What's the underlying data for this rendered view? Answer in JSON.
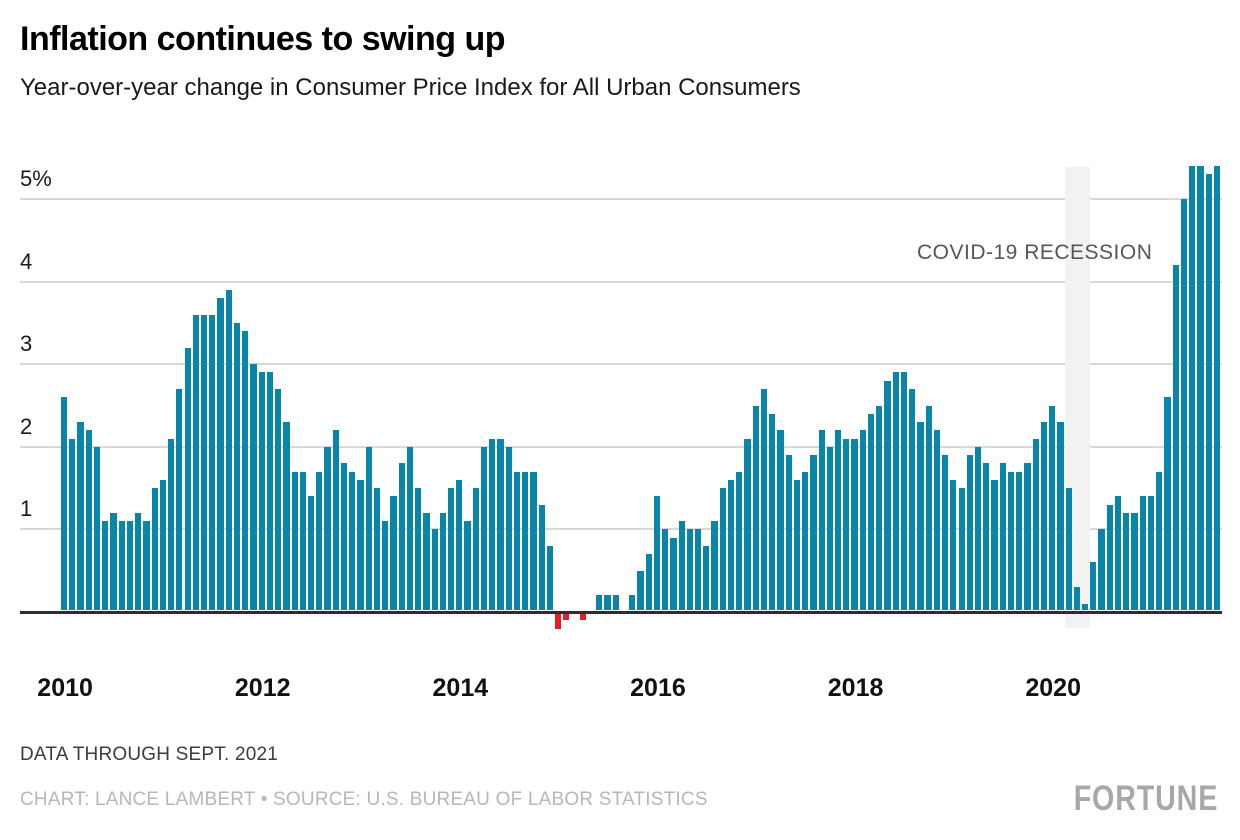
{
  "header": {
    "title": "Inflation continues to swing up",
    "subtitle": "Year-over-year change in Consumer Price Index for All Urban Consumers"
  },
  "chart_data": {
    "type": "bar",
    "title": "Inflation continues to swing up",
    "subtitle": "Year-over-year change in Consumer Price Index for All Urban Consumers",
    "x_start_month": "2010-01",
    "x_end_month": "2021-09",
    "x_tick_labels": [
      "2010",
      "2012",
      "2014",
      "2016",
      "2018",
      "2020"
    ],
    "x_tick_month_indices": [
      0,
      24,
      48,
      72,
      96,
      120
    ],
    "y_ticks": [
      5,
      4,
      3,
      2,
      1
    ],
    "y_tick_labels": [
      "5%",
      "4",
      "3",
      "2",
      "1"
    ],
    "ylim": [
      -0.5,
      5.5
    ],
    "value_unit": "percent",
    "grid": "horizontal",
    "series": [
      {
        "name": "YoY change in CPI-U (%)",
        "values": [
          2.6,
          2.1,
          2.3,
          2.2,
          2.0,
          1.1,
          1.2,
          1.1,
          1.1,
          1.2,
          1.1,
          1.5,
          1.6,
          2.1,
          2.7,
          3.2,
          3.6,
          3.6,
          3.6,
          3.8,
          3.9,
          3.5,
          3.4,
          3.0,
          2.9,
          2.9,
          2.7,
          2.3,
          1.7,
          1.7,
          1.4,
          1.7,
          2.0,
          2.2,
          1.8,
          1.7,
          1.6,
          2.0,
          1.5,
          1.1,
          1.4,
          1.8,
          2.0,
          1.5,
          1.2,
          1.0,
          1.2,
          1.5,
          1.6,
          1.1,
          1.5,
          2.0,
          2.1,
          2.1,
          2.0,
          1.7,
          1.7,
          1.7,
          1.3,
          0.8,
          -0.2,
          -0.1,
          0.0,
          -0.1,
          0.0,
          0.2,
          0.2,
          0.2,
          0.0,
          0.2,
          0.5,
          0.7,
          1.4,
          1.0,
          0.9,
          1.1,
          1.0,
          1.0,
          0.8,
          1.1,
          1.5,
          1.6,
          1.7,
          2.1,
          2.5,
          2.7,
          2.4,
          2.2,
          1.9,
          1.6,
          1.7,
          1.9,
          2.2,
          2.0,
          2.2,
          2.1,
          2.1,
          2.2,
          2.4,
          2.5,
          2.8,
          2.9,
          2.9,
          2.7,
          2.3,
          2.5,
          2.2,
          1.9,
          1.6,
          1.5,
          1.9,
          2.0,
          1.8,
          1.6,
          1.8,
          1.7,
          1.7,
          1.8,
          2.1,
          2.3,
          2.5,
          2.3,
          1.5,
          0.3,
          0.1,
          0.6,
          1.0,
          1.3,
          1.4,
          1.2,
          1.2,
          1.4,
          1.4,
          1.7,
          2.6,
          4.2,
          5.0,
          5.4,
          5.4,
          5.3,
          5.4
        ]
      }
    ],
    "annotation": {
      "text": "COVID-19 RECESSION",
      "band_start_month": "2020-03",
      "band_end_month": "2020-05"
    },
    "colors": {
      "positive_bar": "#0885a8",
      "negative_bar": "#e31e26",
      "band": "#f2f2f2",
      "gridline": "#d8d8d8",
      "zero_axis": "#2e2e2e"
    }
  },
  "footer": {
    "note": "DATA THROUGH SEPT. 2021",
    "credit": "CHART: LANCE LAMBERT • SOURCE: U.S. BUREAU OF LABOR STATISTICS",
    "brand": "FORTUNE"
  }
}
